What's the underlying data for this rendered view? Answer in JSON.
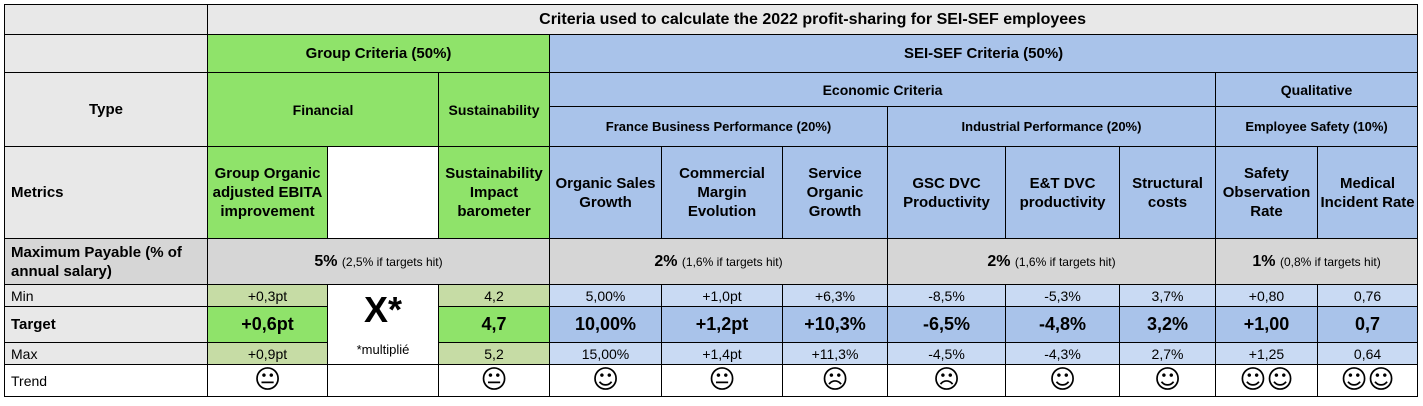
{
  "title": "Criteria used to calculate the 2022 profit-sharing for SEI-SEF employees",
  "group_criteria": "Group Criteria (50%)",
  "sei_criteria": "SEI-SEF Criteria (50%)",
  "type_label": "Type",
  "financial": "Financial",
  "sustainability": "Sustainability",
  "economic": "Economic Criteria",
  "qualitative": "Qualitative",
  "france_perf": "France Business Performance (20%)",
  "industrial_perf": "Industrial Performance (20%)",
  "employee_safety": "Employee Safety (10%)",
  "metrics_label": "Metrics",
  "metrics": {
    "ebita": "Group Organic adjusted EBITA improvement",
    "sust_barometer": "Sustainability Impact barometer",
    "organic_sales": "Organic Sales Growth",
    "comm_margin": "Commercial Margin Evolution",
    "service_growth": "Service Organic Growth",
    "gsc": "GSC DVC Productivity",
    "et": "E&T DVC productivity",
    "structural": "Structural costs",
    "safety_obs": "Safety Observation Rate",
    "medical": "Medical Incident Rate"
  },
  "max_payable_label": "Maximum Payable (% of annual salary)",
  "max_payable": {
    "group": {
      "main": "5%",
      "note": "(2,5% if targets hit)"
    },
    "france": {
      "main": "2%",
      "note": "(1,6% if targets hit)"
    },
    "industrial": {
      "main": "2%",
      "note": "(1,6% if targets hit)"
    },
    "safety": {
      "main": "1%",
      "note": "(0,8% if targets hit)"
    }
  },
  "multiplier": {
    "symbol": "X*",
    "note": "*multiplié"
  },
  "rows": {
    "min": {
      "label": "Min",
      "values": [
        "+0,3pt",
        "4,2",
        "5,00%",
        "+1,0pt",
        "+6,3%",
        "-8,5%",
        "-5,3%",
        "3,7%",
        "+0,80",
        "0,76"
      ]
    },
    "target": {
      "label": "Target",
      "values": [
        "+0,6pt",
        "4,7",
        "10,00%",
        "+1,2pt",
        "+10,3%",
        "-6,5%",
        "-4,8%",
        "3,2%",
        "+1,00",
        "0,7"
      ]
    },
    "max": {
      "label": "Max",
      "values": [
        "+0,9pt",
        "5,2",
        "15,00%",
        "+1,4pt",
        "+11,3%",
        "-4,5%",
        "-4,3%",
        "2,7%",
        "+1,25",
        "0,64"
      ]
    },
    "trend": {
      "label": "Trend",
      "values": [
        "neutral",
        "neutral",
        "happy",
        "neutral",
        "sad",
        "sad",
        "happy",
        "happy",
        "happy-happy",
        "happy-happy"
      ]
    }
  },
  "icons": {
    "neutral": "😐",
    "happy": "☺",
    "sad": "☹"
  }
}
